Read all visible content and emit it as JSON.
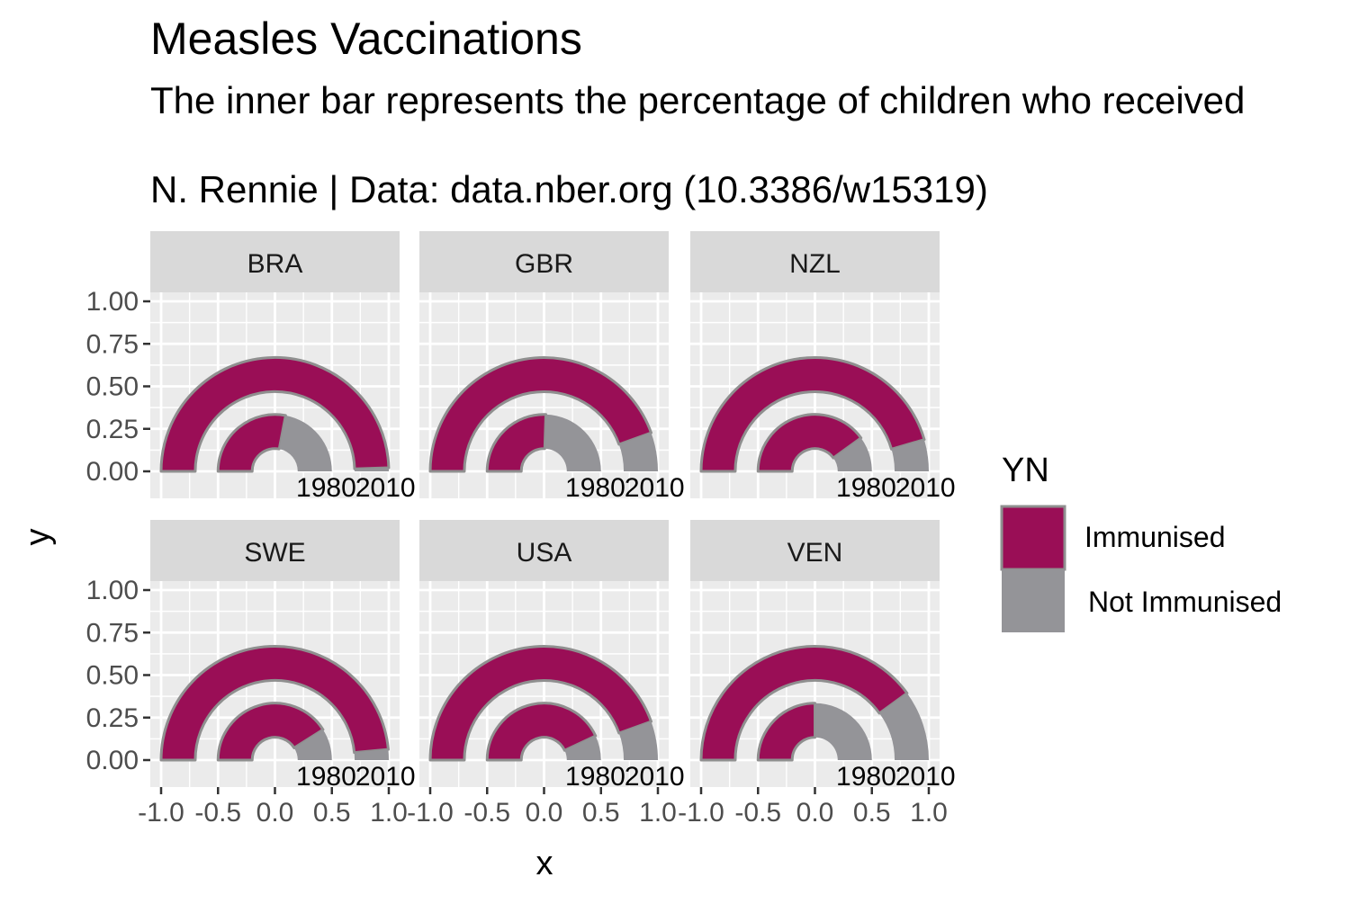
{
  "title": "Measles Vaccinations",
  "subtitle": "The inner bar represents the percentage of children who received",
  "caption": "N. Rennie | Data: data.nber.org (10.3386/w15319)",
  "colors": {
    "immunised": "#9A0E56",
    "not_immunised": "#949498",
    "outline": "#8F8F8F",
    "panel_bg": "#EBEBEB",
    "strip_bg": "#D9D9D9",
    "grid": "#FFFFFF"
  },
  "chart_data": {
    "type": "faceted polar bar (half-donut)",
    "x_label": "x",
    "y_label": "y",
    "x_ticks": [
      "-1.0",
      "-0.5",
      "0.0",
      "0.5",
      "1.0"
    ],
    "y_ticks": [
      "0.00",
      "0.25",
      "0.50",
      "0.75",
      "1.00"
    ],
    "xlim": [
      -1.0,
      1.0
    ],
    "ylim": [
      0.0,
      1.0
    ],
    "ring_labels": [
      "1980",
      "2010"
    ],
    "legend": {
      "title": "YN",
      "items": [
        "Immunised",
        "Not Immunised"
      ]
    },
    "facets": [
      {
        "country": "BRA",
        "immunised_1980": 0.56,
        "immunised_2010": 0.99
      },
      {
        "country": "GBR",
        "immunised_1980": 0.51,
        "immunised_2010": 0.89
      },
      {
        "country": "NZL",
        "immunised_1980": 0.8,
        "immunised_2010": 0.91
      },
      {
        "country": "SWE",
        "immunised_1980": 0.82,
        "immunised_2010": 0.97
      },
      {
        "country": "USA",
        "immunised_1980": 0.86,
        "immunised_2010": 0.89
      },
      {
        "country": "VEN",
        "immunised_1980": 0.5,
        "immunised_2010": 0.8
      }
    ]
  }
}
